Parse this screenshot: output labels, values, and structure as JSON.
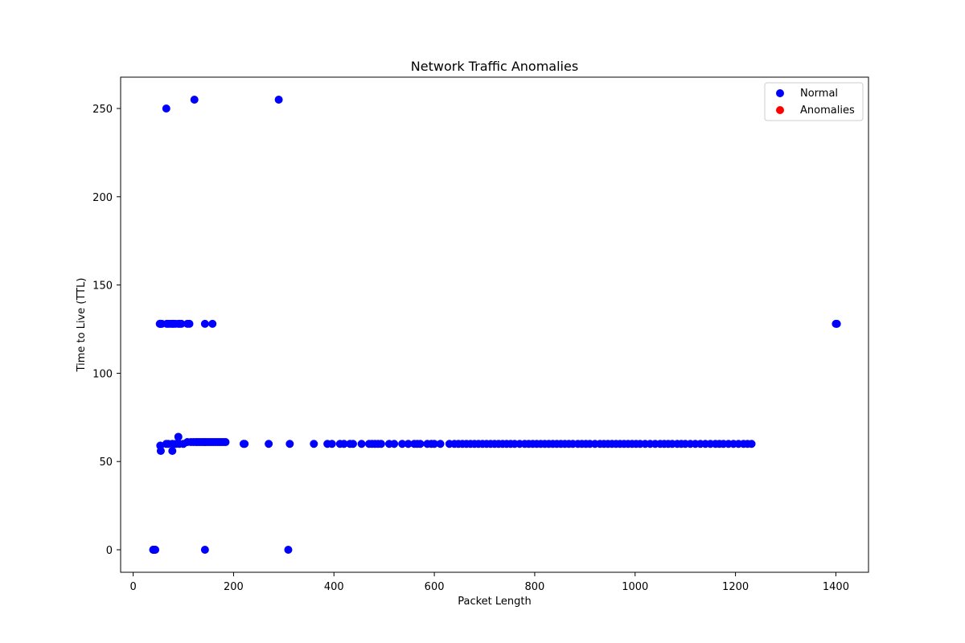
{
  "chart_data": {
    "type": "scatter",
    "title": "Network Traffic Anomalies",
    "xlabel": "Packet Length",
    "ylabel": "Time to Live (TTL)",
    "xlim": [
      -25,
      1465
    ],
    "ylim": [
      -12.75,
      267.75
    ],
    "xticks": [
      0,
      200,
      400,
      600,
      800,
      1000,
      1200,
      1400
    ],
    "yticks": [
      0,
      50,
      100,
      150,
      200,
      250
    ],
    "grid": false,
    "legend": {
      "placement": "top-right"
    },
    "series": [
      {
        "name": "Normal",
        "color": "#0000ff",
        "points": [
          [
            40,
            0
          ],
          [
            41,
            0
          ],
          [
            42,
            0
          ],
          [
            43,
            0
          ],
          [
            44,
            0
          ],
          [
            40,
            0
          ],
          [
            42,
            0
          ],
          [
            143,
            0
          ],
          [
            309,
            0
          ],
          [
            66,
            250
          ],
          [
            122,
            255
          ],
          [
            290,
            255
          ],
          [
            53,
            128
          ],
          [
            54,
            128
          ],
          [
            55,
            128
          ],
          [
            57,
            128
          ],
          [
            67,
            128
          ],
          [
            70,
            128
          ],
          [
            74,
            128
          ],
          [
            78,
            128
          ],
          [
            80,
            128
          ],
          [
            84,
            128
          ],
          [
            90,
            128
          ],
          [
            93,
            128
          ],
          [
            96,
            128
          ],
          [
            108,
            128
          ],
          [
            112,
            128
          ],
          [
            143,
            128
          ],
          [
            158,
            128
          ],
          [
            1400,
            128
          ],
          [
            1402,
            128
          ],
          [
            90,
            64
          ],
          [
            54,
            59
          ],
          [
            55,
            56
          ],
          [
            78,
            56
          ],
          [
            78,
            60
          ],
          [
            66,
            60
          ],
          [
            70,
            60
          ],
          [
            85,
            60
          ],
          [
            92,
            60
          ],
          [
            100,
            60
          ],
          [
            108,
            61
          ],
          [
            115,
            61
          ],
          [
            120,
            61
          ],
          [
            125,
            61
          ],
          [
            128,
            61
          ],
          [
            132,
            61
          ],
          [
            136,
            61
          ],
          [
            140,
            61
          ],
          [
            144,
            61
          ],
          [
            148,
            61
          ],
          [
            152,
            61
          ],
          [
            156,
            61
          ],
          [
            160,
            61
          ],
          [
            164,
            61
          ],
          [
            168,
            61
          ],
          [
            172,
            61
          ],
          [
            176,
            61
          ],
          [
            180,
            61
          ],
          [
            184,
            61
          ],
          [
            220,
            60
          ],
          [
            222,
            60
          ],
          [
            270,
            60
          ],
          [
            312,
            60
          ],
          [
            360,
            60
          ],
          [
            387,
            60
          ],
          [
            396,
            60
          ],
          [
            412,
            60
          ],
          [
            420,
            60
          ],
          [
            432,
            60
          ],
          [
            438,
            60
          ],
          [
            455,
            60
          ],
          [
            470,
            60
          ],
          [
            476,
            60
          ],
          [
            482,
            60
          ],
          [
            488,
            60
          ],
          [
            494,
            60
          ],
          [
            510,
            60
          ],
          [
            520,
            60
          ],
          [
            536,
            60
          ],
          [
            548,
            60
          ],
          [
            560,
            60
          ],
          [
            566,
            60
          ],
          [
            572,
            60
          ],
          [
            586,
            60
          ],
          [
            594,
            60
          ],
          [
            600,
            60
          ],
          [
            612,
            60
          ],
          [
            630,
            60
          ],
          [
            640,
            60
          ],
          [
            648,
            60
          ],
          [
            656,
            60
          ],
          [
            664,
            60
          ],
          [
            672,
            60
          ],
          [
            680,
            60
          ],
          [
            688,
            60
          ],
          [
            696,
            60
          ],
          [
            704,
            60
          ],
          [
            712,
            60
          ],
          [
            720,
            60
          ],
          [
            728,
            60
          ],
          [
            736,
            60
          ],
          [
            744,
            60
          ],
          [
            752,
            60
          ],
          [
            760,
            60
          ],
          [
            770,
            60
          ],
          [
            780,
            60
          ],
          [
            788,
            60
          ],
          [
            796,
            60
          ],
          [
            804,
            60
          ],
          [
            812,
            60
          ],
          [
            820,
            60
          ],
          [
            828,
            60
          ],
          [
            836,
            60
          ],
          [
            844,
            60
          ],
          [
            852,
            60
          ],
          [
            860,
            60
          ],
          [
            868,
            60
          ],
          [
            876,
            60
          ],
          [
            886,
            60
          ],
          [
            894,
            60
          ],
          [
            902,
            60
          ],
          [
            910,
            60
          ],
          [
            920,
            60
          ],
          [
            930,
            60
          ],
          [
            938,
            60
          ],
          [
            946,
            60
          ],
          [
            954,
            60
          ],
          [
            962,
            60
          ],
          [
            970,
            60
          ],
          [
            978,
            60
          ],
          [
            986,
            60
          ],
          [
            994,
            60
          ],
          [
            1002,
            60
          ],
          [
            1010,
            60
          ],
          [
            1020,
            60
          ],
          [
            1030,
            60
          ],
          [
            1040,
            60
          ],
          [
            1050,
            60
          ],
          [
            1058,
            60
          ],
          [
            1066,
            60
          ],
          [
            1074,
            60
          ],
          [
            1084,
            60
          ],
          [
            1092,
            60
          ],
          [
            1100,
            60
          ],
          [
            1110,
            60
          ],
          [
            1120,
            60
          ],
          [
            1130,
            60
          ],
          [
            1140,
            60
          ],
          [
            1150,
            60
          ],
          [
            1160,
            60
          ],
          [
            1168,
            60
          ],
          [
            1176,
            60
          ],
          [
            1186,
            60
          ],
          [
            1196,
            60
          ],
          [
            1206,
            60
          ],
          [
            1216,
            60
          ],
          [
            1224,
            60
          ],
          [
            1232,
            60
          ]
        ]
      },
      {
        "name": "Anomalies",
        "color": "#ff0000",
        "points": []
      }
    ]
  }
}
